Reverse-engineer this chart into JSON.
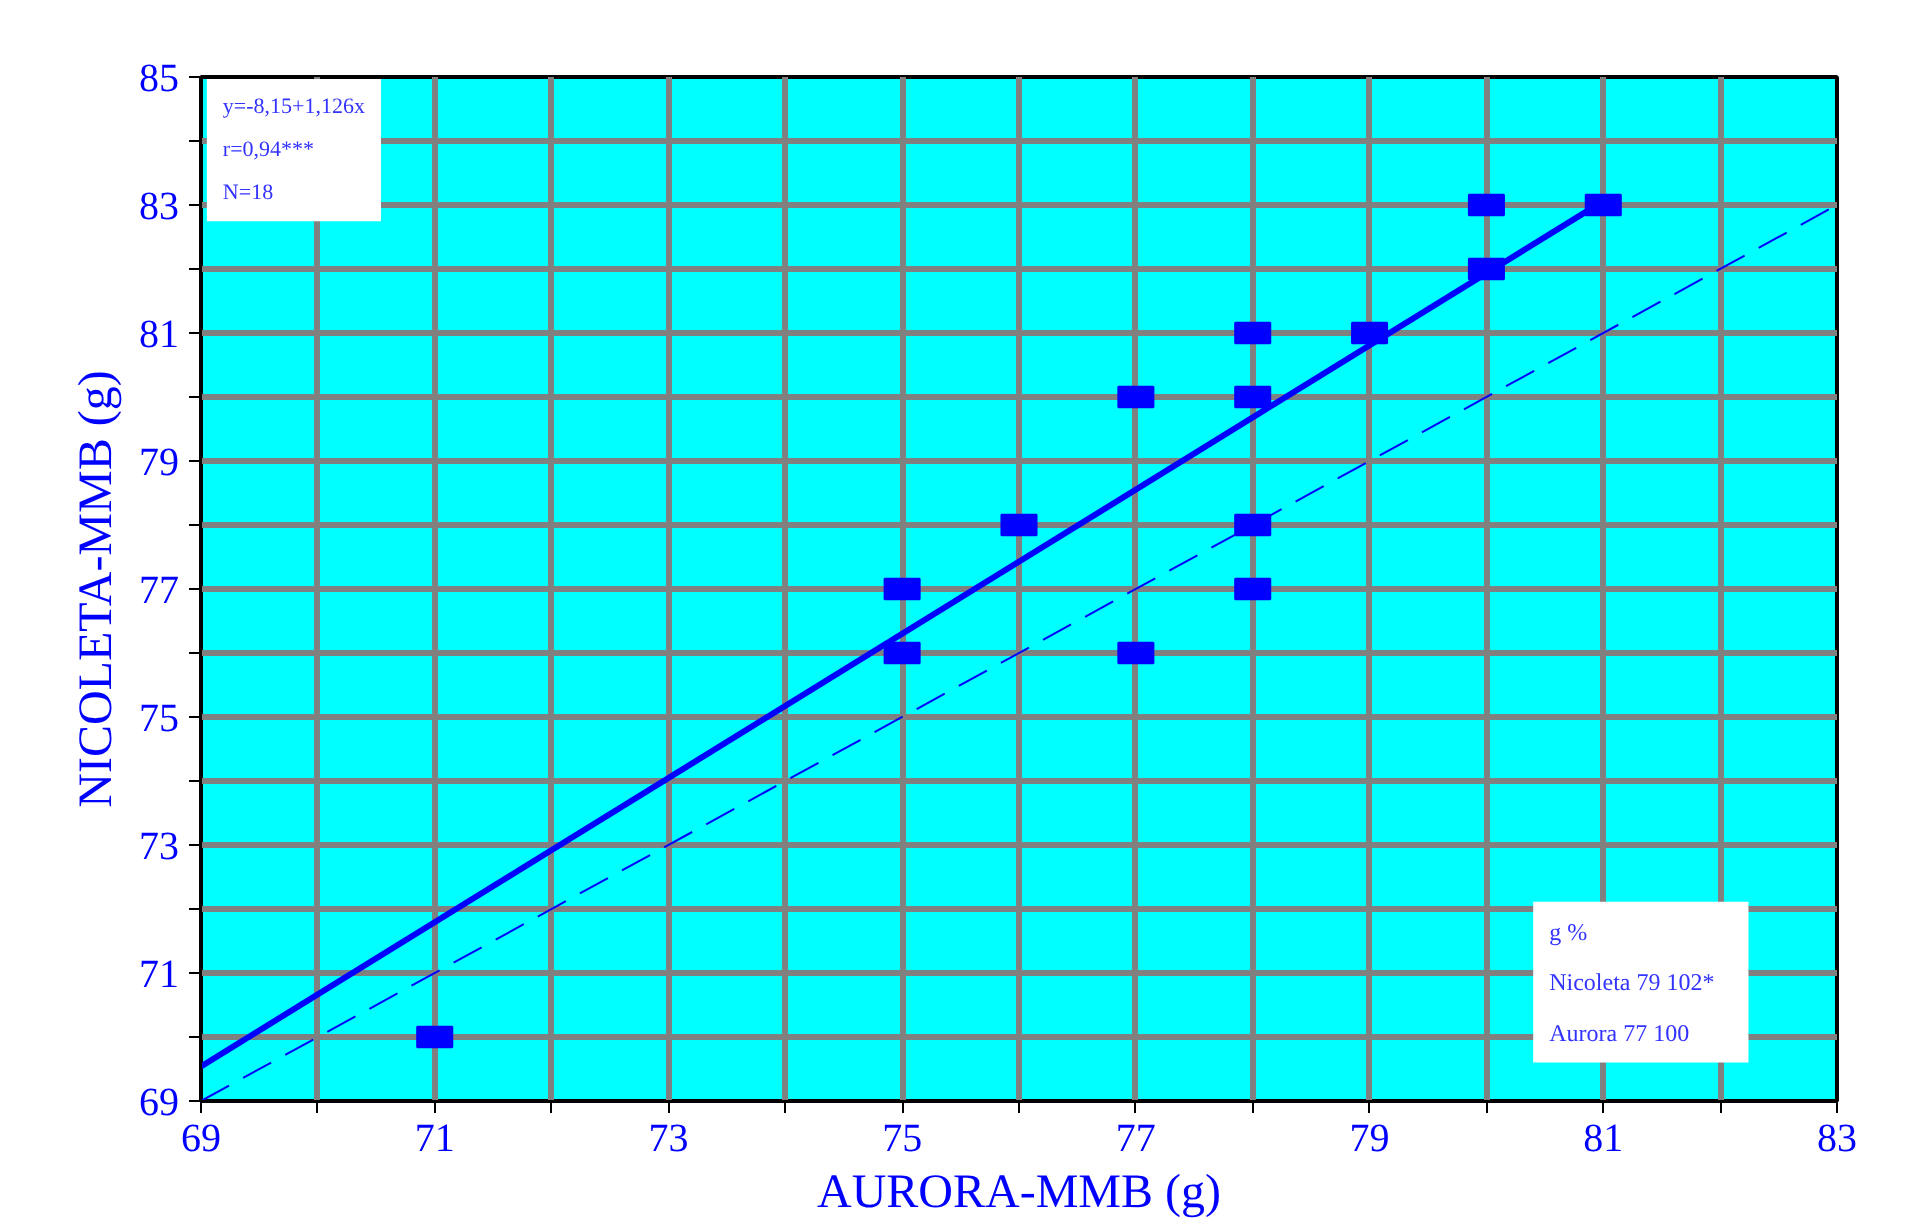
{
  "chart_data": {
    "type": "scatter",
    "xlabel": "AURORA-MMB (g)",
    "ylabel": "NICOLETA-MMB (g)",
    "xlim": [
      69,
      83
    ],
    "ylim": [
      69,
      85
    ],
    "xticks": [
      69,
      {
        "value": 70,
        "label": null
      },
      71,
      {
        "value": 72,
        "label": null
      },
      73,
      {
        "value": 74,
        "label": null
      },
      75,
      {
        "value": 76,
        "label": null
      },
      77,
      {
        "value": 78,
        "label": null
      },
      79,
      {
        "value": 80,
        "label": null
      },
      81,
      {
        "value": 82,
        "label": null
      },
      83
    ],
    "yticks": [
      69,
      {
        "value": 70,
        "label": null
      },
      71,
      {
        "value": 72,
        "label": null
      },
      73,
      {
        "value": 74,
        "label": null
      },
      75,
      {
        "value": 76,
        "label": null
      },
      77,
      {
        "value": 78,
        "label": null
      },
      79,
      {
        "value": 80,
        "label": null
      },
      81,
      {
        "value": 82,
        "label": null
      },
      83,
      {
        "value": 84,
        "label": null
      },
      85
    ],
    "grid": true,
    "marker": "square",
    "series": [
      {
        "color": "#0000ff",
        "x": [
          71,
          75,
          75,
          76,
          77,
          77,
          78,
          78,
          78,
          78,
          79,
          80,
          80,
          81
        ],
        "values": [
          70,
          77,
          76,
          78,
          80,
          76,
          81,
          80,
          78,
          77,
          81,
          83,
          82,
          83
        ]
      },
      {
        "type": "line",
        "marker": "none",
        "color": "#0000ff",
        "line_style": "solid",
        "x": [
          69,
          81
        ],
        "values": [
          69.54,
          83.06
        ]
      },
      {
        "type": "line",
        "marker": "none",
        "color": "#0000ff",
        "line_style": "dashed",
        "x": [
          69,
          83
        ],
        "values": [
          69,
          83
        ]
      }
    ],
    "annotations": [
      "y=-8,15+1,126x\nr=0,94***\nN=18",
      "g   %\nNicoleta  79   102*\nAurora  77   100"
    ]
  }
}
